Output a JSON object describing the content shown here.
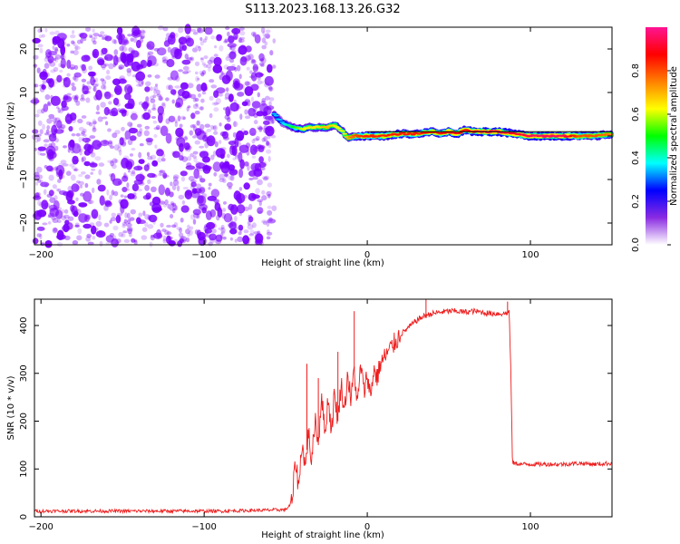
{
  "title": "S113.2023.168.13.26.G32",
  "chart_data": [
    {
      "type": "heatmap",
      "title": "",
      "xlabel": "Height of straight line (km)",
      "ylabel": "Frequency (Hz)",
      "xlim": [
        -204,
        150
      ],
      "ylim": [
        -25,
        25
      ],
      "xticks": [
        -200,
        -100,
        0,
        100
      ],
      "yticks": [
        -20,
        -10,
        0,
        10,
        20
      ],
      "colorbar": {
        "label": "Normalized spectral amplitude",
        "range": [
          0,
          1
        ],
        "ticks": [
          0.0,
          0.2,
          0.4,
          0.6,
          0.8
        ],
        "colormap": [
          "#ffffff",
          "#8a2be2",
          "#0000ff",
          "#00ffff",
          "#00ff00",
          "#ffff00",
          "#ff8000",
          "#ff0000",
          "#ff1493"
        ]
      },
      "noise_region": {
        "x_from": -204,
        "x_to": -57,
        "freq_from": -25,
        "freq_to": 25,
        "amplitude": [
          0.0,
          0.15
        ],
        "color": "#7b00ff"
      },
      "ridge": {
        "x": [
          -57,
          -52,
          -45,
          -40,
          -35,
          -30,
          -25,
          -20,
          -15,
          -12,
          -8,
          0,
          10,
          20,
          30,
          40,
          45,
          50,
          55,
          60,
          65,
          70,
          80,
          90,
          100,
          110,
          120,
          130,
          140,
          150
        ],
        "freq": [
          5,
          3,
          2,
          1.5,
          2,
          2,
          2,
          2.5,
          1,
          -0.5,
          0,
          0,
          0,
          0.5,
          0.5,
          1,
          0.5,
          1,
          0.5,
          1.5,
          1,
          1,
          1,
          0.5,
          0,
          0,
          0,
          0,
          0,
          0.5
        ],
        "amplitude": [
          0.35,
          0.35,
          0.5,
          0.6,
          0.65,
          0.65,
          0.7,
          0.65,
          0.6,
          0.7,
          0.8,
          0.85,
          0.85,
          0.85,
          0.85,
          0.85,
          0.85,
          0.9,
          0.9,
          0.85,
          0.9,
          0.95,
          0.95,
          0.9,
          0.95,
          0.95,
          0.95,
          0.8,
          0.8,
          0.75
        ]
      },
      "reference_line_freq": 1
    },
    {
      "type": "line",
      "title": "",
      "xlabel": "Height of straight line (km)",
      "ylabel": "SNR (10 * v/v)",
      "xlim": [
        -204,
        150
      ],
      "ylim": [
        0,
        455
      ],
      "xticks": [
        -200,
        -100,
        0,
        100
      ],
      "yticks": [
        0,
        100,
        200,
        300,
        400
      ],
      "series": [
        {
          "color": "#ee1c1c",
          "x": [
            -204,
            -180,
            -150,
            -120,
            -90,
            -60,
            -50,
            -46,
            -44,
            -42,
            -40,
            -38,
            -36,
            -34,
            -32,
            -30,
            -28,
            -26,
            -24,
            -22,
            -20,
            -18,
            -16,
            -14,
            -12,
            -10,
            -8,
            -6,
            -4,
            -2,
            0,
            2,
            4,
            6,
            8,
            10,
            12,
            14,
            16,
            18,
            20,
            25,
            30,
            35,
            40,
            45,
            50,
            55,
            60,
            65,
            70,
            75,
            80,
            85,
            87,
            88,
            89,
            90,
            95,
            100,
            110,
            120,
            130,
            140,
            150
          ],
          "y": [
            12,
            12,
            12,
            12,
            12,
            14,
            15,
            30,
            120,
            60,
            160,
            100,
            180,
            110,
            210,
            150,
            260,
            170,
            250,
            180,
            260,
            200,
            280,
            220,
            300,
            240,
            310,
            230,
            320,
            260,
            300,
            250,
            310,
            290,
            320,
            330,
            340,
            350,
            360,
            370,
            380,
            395,
            410,
            420,
            425,
            428,
            430,
            430,
            428,
            430,
            428,
            425,
            425,
            425,
            430,
            300,
            115,
            112,
            110,
            110,
            110,
            110,
            112,
            110,
            112
          ]
        }
      ],
      "spikes": [
        {
          "x": -37,
          "y": 320
        },
        {
          "x": -30,
          "y": 290
        },
        {
          "x": -18,
          "y": 345
        },
        {
          "x": -8,
          "y": 430
        },
        {
          "x": 36,
          "y": 455
        },
        {
          "x": 86,
          "y": 450
        }
      ]
    }
  ]
}
